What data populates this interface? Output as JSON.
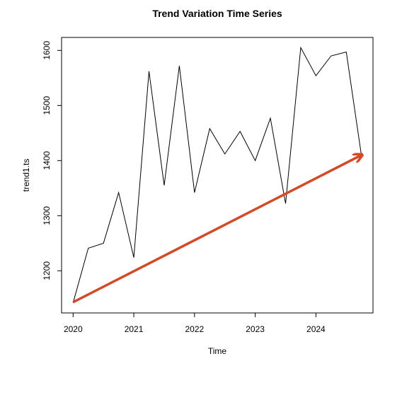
{
  "chart_data": {
    "type": "line",
    "title": "Trend Variation Time Series",
    "xlabel": "Time",
    "ylabel": "trend1.ts",
    "x": [
      2020,
      2020.25,
      2020.5,
      2020.75,
      2021,
      2021.25,
      2021.5,
      2021.75,
      2022,
      2022.25,
      2022.5,
      2022.75,
      2023,
      2023.25,
      2023.5,
      2023.75,
      2024,
      2024.25,
      2024.5,
      2024.75
    ],
    "series": [
      {
        "name": "trend1.ts",
        "color": "#000000",
        "values": [
          1142,
          1241,
          1250,
          1342,
          1224,
          1562,
          1355,
          1572,
          1342,
          1458,
          1412,
          1453,
          1400,
          1477,
          1322,
          1605,
          1554,
          1590,
          1597,
          1409
        ]
      }
    ],
    "arrow": {
      "x": [
        2020,
        2024.75
      ],
      "y": [
        1143,
        1410
      ],
      "color": "#d24a26"
    },
    "xlim": [
      2019.81,
      2024.94
    ],
    "xticks": [
      2020,
      2021,
      2022,
      2023,
      2024
    ],
    "ylim": [
      1123.5,
      1623.5
    ],
    "yticks": [
      1200,
      1300,
      1400,
      1500,
      1600
    ]
  }
}
